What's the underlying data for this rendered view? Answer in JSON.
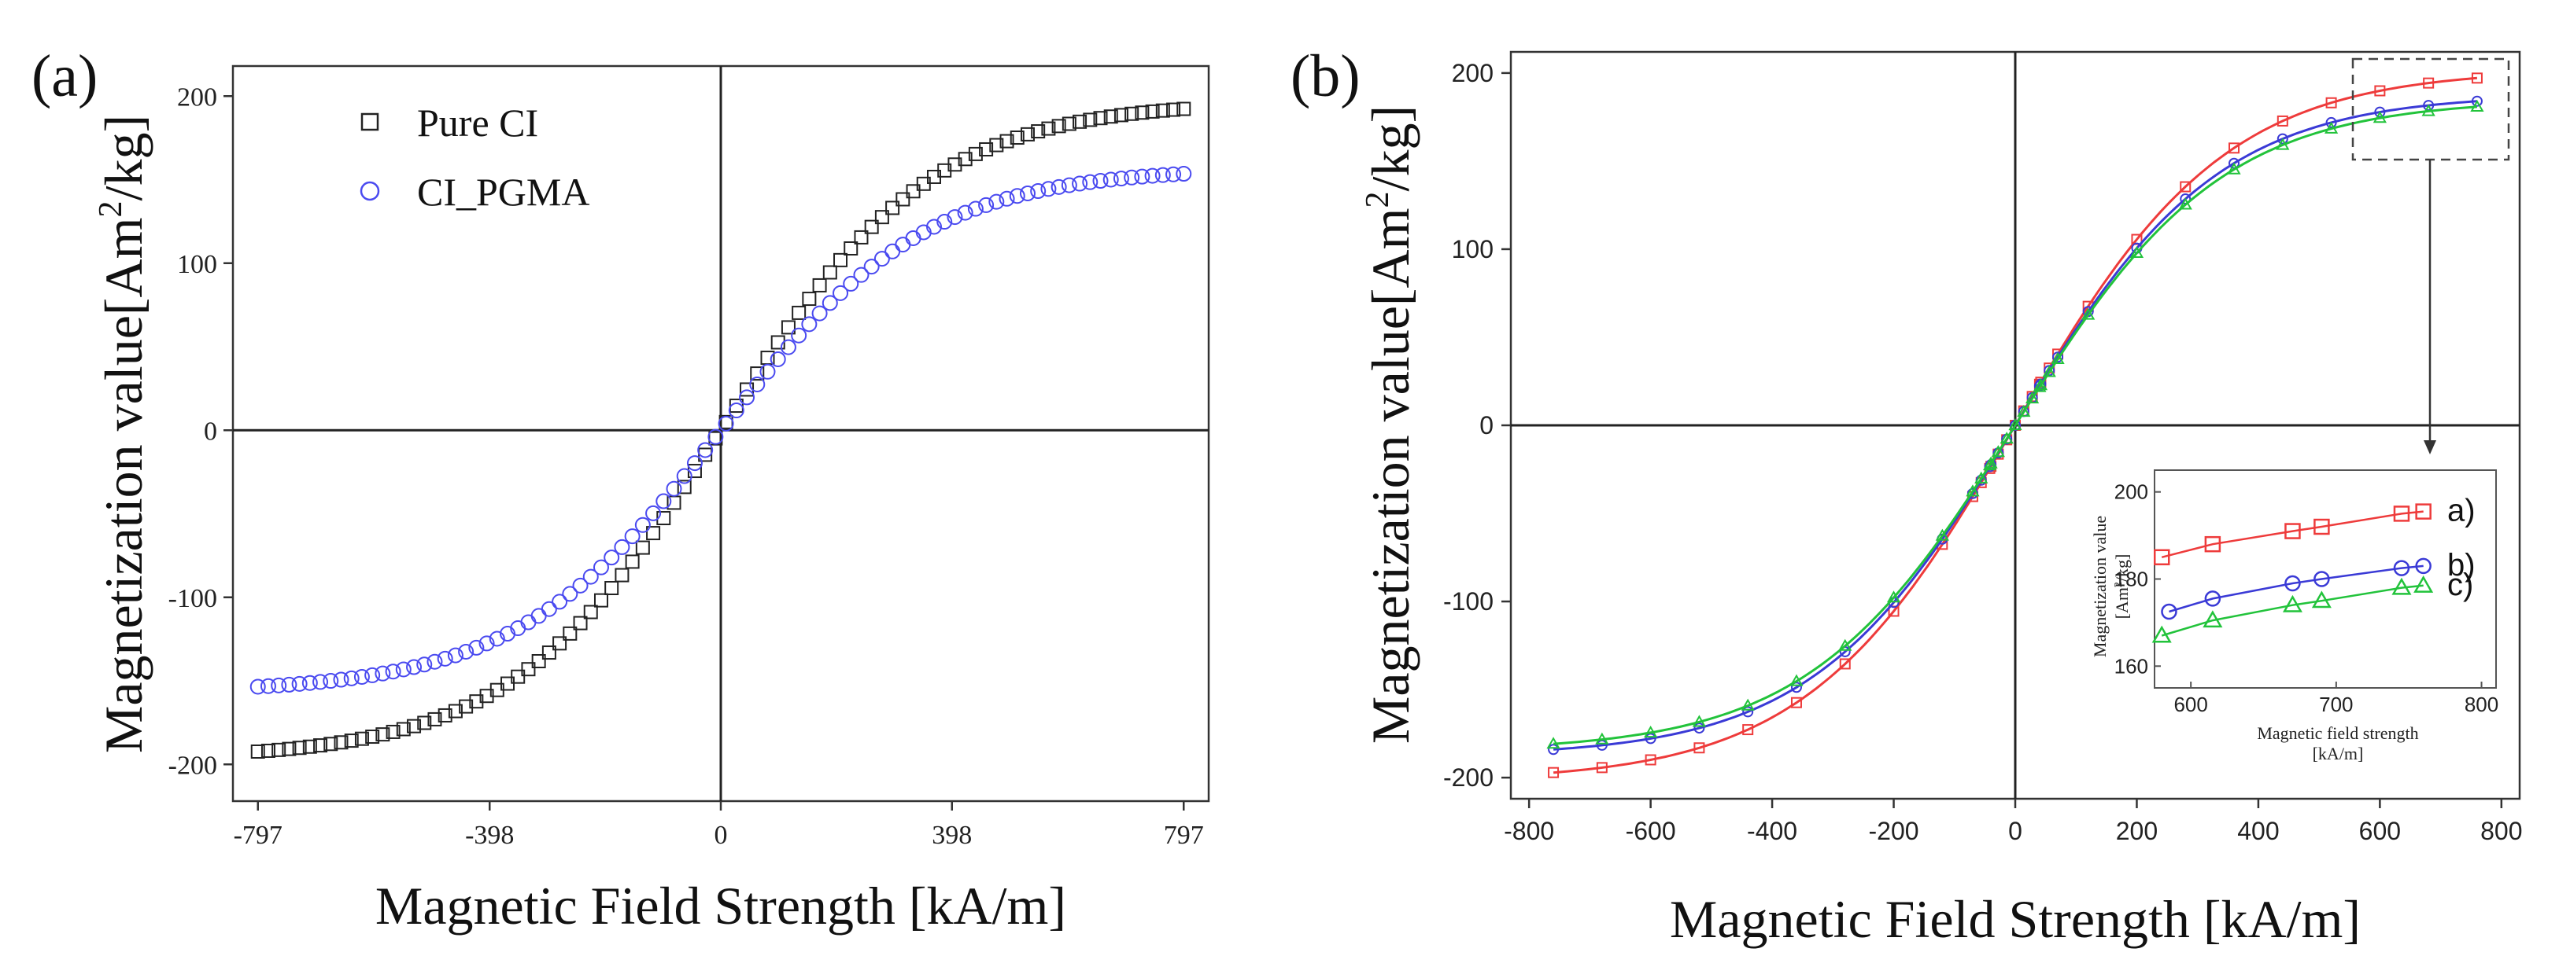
{
  "chart_data": [
    {
      "id": "a",
      "type": "scatter",
      "panel_label": "(a)",
      "title": "",
      "xlabel": "Magnetic Field Strength [kA/m]",
      "ylabel_parts": [
        "Magnetization value[Am",
        "2",
        "/kg]"
      ],
      "xlim": [
        -840,
        840
      ],
      "ylim": [
        -222,
        218
      ],
      "xticks": [
        -797,
        -398,
        0,
        398,
        797
      ],
      "yticks": [
        -200,
        -100,
        0,
        100,
        200
      ],
      "grid": false,
      "legend_position": "top-left",
      "series": [
        {
          "name": "Pure CI",
          "marker": "square",
          "color": "#222222",
          "Ms": 197,
          "k": 360,
          "npoints": 90
        },
        {
          "name": "CI_PGMA",
          "marker": "circle",
          "color": "#4a4af0",
          "Ms": 157,
          "k": 355,
          "npoints": 90
        }
      ]
    },
    {
      "id": "b",
      "type": "line",
      "panel_label": "(b)",
      "title": "",
      "xlabel": "Magnetic Field Strength [kA/m]",
      "ylabel_parts": [
        "Magnetization value[Am",
        "2",
        "/kg]"
      ],
      "xlim": [
        -830,
        830
      ],
      "ylim": [
        -212,
        212
      ],
      "xticks": [
        -800,
        -600,
        -400,
        -200,
        0,
        200,
        400,
        600,
        800
      ],
      "yticks": [
        -200,
        -100,
        0,
        100,
        200
      ],
      "grid": false,
      "series": [
        {
          "name": "a)",
          "marker": "square",
          "color": "#ee3b3b",
          "Ms": 202,
          "k": 345,
          "step": 80
        },
        {
          "name": "b)",
          "marker": "circle",
          "color": "#3a3ad6",
          "Ms": 188,
          "k": 335,
          "step": 80
        },
        {
          "name": "c)",
          "marker": "triangle",
          "color": "#22c33b",
          "Ms": 185,
          "k": 340,
          "step": 80
        }
      ],
      "inset": {
        "xlabel": "Magnetic field strength",
        "xlabel_unit": "[kA/m]",
        "ylabel": "Magnetization value",
        "ylabel_unit_parts": [
          "[Am",
          "2",
          "/kg]"
        ],
        "xlim": [
          575,
          810
        ],
        "ylim": [
          155,
          205
        ],
        "xticks": [
          600,
          700,
          800
        ],
        "yticks": [
          160,
          180,
          200
        ],
        "series": [
          {
            "name": "a)",
            "marker": "square",
            "color": "#ee3b3b",
            "x": [
              580,
              615,
              670,
              690,
              745,
              760
            ],
            "y": [
              185,
              188,
              191,
              192,
              195,
              195.5
            ]
          },
          {
            "name": "b)",
            "marker": "circle",
            "color": "#3a3ad6",
            "x": [
              585,
              615,
              670,
              690,
              745,
              760
            ],
            "y": [
              172.5,
              175.5,
              179,
              180,
              182.5,
              183
            ]
          },
          {
            "name": "c)",
            "marker": "triangle",
            "color": "#22c33b",
            "x": [
              580,
              615,
              670,
              690,
              745,
              760
            ],
            "y": [
              167,
              170.5,
              174,
              175,
              178,
              178.5
            ]
          }
        ]
      }
    }
  ]
}
